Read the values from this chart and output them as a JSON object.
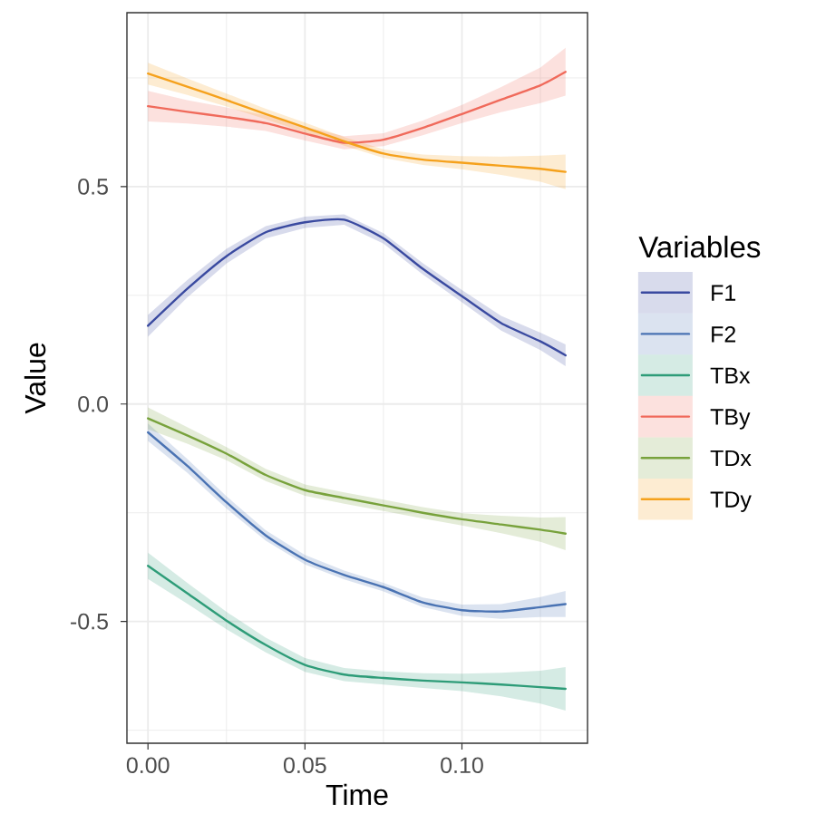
{
  "chart_data": {
    "type": "line",
    "xlabel": "Time",
    "ylabel": "Value",
    "legend_title": "Variables",
    "x": [
      0,
      0.0125,
      0.025,
      0.0375,
      0.05,
      0.0625,
      0.075,
      0.0875,
      0.1,
      0.1125,
      0.125,
      0.133
    ],
    "series": [
      {
        "name": "F1",
        "color": "#3a4aa0",
        "values": [
          0.18,
          0.265,
          0.34,
          0.395,
          0.418,
          0.424,
          0.381,
          0.311,
          0.248,
          0.186,
          0.144,
          0.112
        ],
        "lower": [
          0.155,
          0.245,
          0.323,
          0.381,
          0.405,
          0.412,
          0.369,
          0.298,
          0.234,
          0.169,
          0.124,
          0.087
        ],
        "upper": [
          0.205,
          0.285,
          0.357,
          0.409,
          0.431,
          0.436,
          0.393,
          0.324,
          0.262,
          0.203,
          0.164,
          0.137
        ]
      },
      {
        "name": "F2",
        "color": "#4a73b3",
        "values": [
          -0.065,
          -0.142,
          -0.226,
          -0.302,
          -0.358,
          -0.393,
          -0.421,
          -0.456,
          -0.474,
          -0.477,
          -0.467,
          -0.46
        ],
        "lower": [
          -0.085,
          -0.158,
          -0.24,
          -0.314,
          -0.369,
          -0.403,
          -0.431,
          -0.467,
          -0.487,
          -0.494,
          -0.49,
          -0.49
        ],
        "upper": [
          -0.045,
          -0.126,
          -0.212,
          -0.29,
          -0.347,
          -0.383,
          -0.411,
          -0.445,
          -0.461,
          -0.46,
          -0.444,
          -0.43
        ]
      },
      {
        "name": "TBx",
        "color": "#2e9c78",
        "values": [
          -0.372,
          -0.435,
          -0.498,
          -0.554,
          -0.6,
          -0.622,
          -0.63,
          -0.636,
          -0.64,
          -0.645,
          -0.651,
          -0.655
        ],
        "lower": [
          -0.402,
          -0.459,
          -0.518,
          -0.571,
          -0.616,
          -0.637,
          -0.645,
          -0.653,
          -0.66,
          -0.672,
          -0.689,
          -0.705
        ],
        "upper": [
          -0.342,
          -0.411,
          -0.478,
          -0.537,
          -0.584,
          -0.607,
          -0.615,
          -0.619,
          -0.62,
          -0.618,
          -0.613,
          -0.605
        ]
      },
      {
        "name": "TBy",
        "color": "#f06a5b",
        "values": [
          0.685,
          0.672,
          0.66,
          0.646,
          0.622,
          0.601,
          0.608,
          0.635,
          0.667,
          0.7,
          0.733,
          0.764
        ],
        "lower": [
          0.65,
          0.645,
          0.638,
          0.628,
          0.606,
          0.586,
          0.593,
          0.618,
          0.646,
          0.671,
          0.692,
          0.709
        ],
        "upper": [
          0.72,
          0.699,
          0.682,
          0.664,
          0.638,
          0.616,
          0.623,
          0.652,
          0.688,
          0.729,
          0.774,
          0.819
        ]
      },
      {
        "name": "TDx",
        "color": "#78a23c",
        "values": [
          -0.033,
          -0.072,
          -0.114,
          -0.163,
          -0.198,
          -0.216,
          -0.233,
          -0.25,
          -0.265,
          -0.277,
          -0.289,
          -0.298
        ],
        "lower": [
          -0.058,
          -0.091,
          -0.129,
          -0.177,
          -0.211,
          -0.229,
          -0.246,
          -0.263,
          -0.279,
          -0.297,
          -0.317,
          -0.336
        ],
        "upper": [
          -0.008,
          -0.053,
          -0.099,
          -0.149,
          -0.185,
          -0.203,
          -0.22,
          -0.237,
          -0.251,
          -0.257,
          -0.261,
          -0.26
        ]
      },
      {
        "name": "TDy",
        "color": "#f5a11c",
        "values": [
          0.76,
          0.73,
          0.699,
          0.667,
          0.636,
          0.604,
          0.576,
          0.562,
          0.555,
          0.548,
          0.541,
          0.534
        ],
        "lower": [
          0.735,
          0.711,
          0.684,
          0.655,
          0.625,
          0.594,
          0.566,
          0.55,
          0.54,
          0.527,
          0.511,
          0.494
        ],
        "upper": [
          0.785,
          0.749,
          0.714,
          0.679,
          0.647,
          0.614,
          0.586,
          0.574,
          0.57,
          0.569,
          0.571,
          0.574
        ]
      }
    ],
    "xlim": [
      -0.0067,
      0.14
    ],
    "ylim": [
      -0.78,
      0.9
    ],
    "xticks": [
      {
        "value": 0,
        "label": "0.00"
      },
      {
        "value": 0.05,
        "label": "0.05"
      },
      {
        "value": 0.1,
        "label": "0.10"
      }
    ],
    "yticks": [
      -0.5,
      {
        "value": 0,
        "label": "0.0"
      },
      0.5
    ],
    "grid": true,
    "legend": "right",
    "marker": "none",
    "line_style": "solid"
  }
}
